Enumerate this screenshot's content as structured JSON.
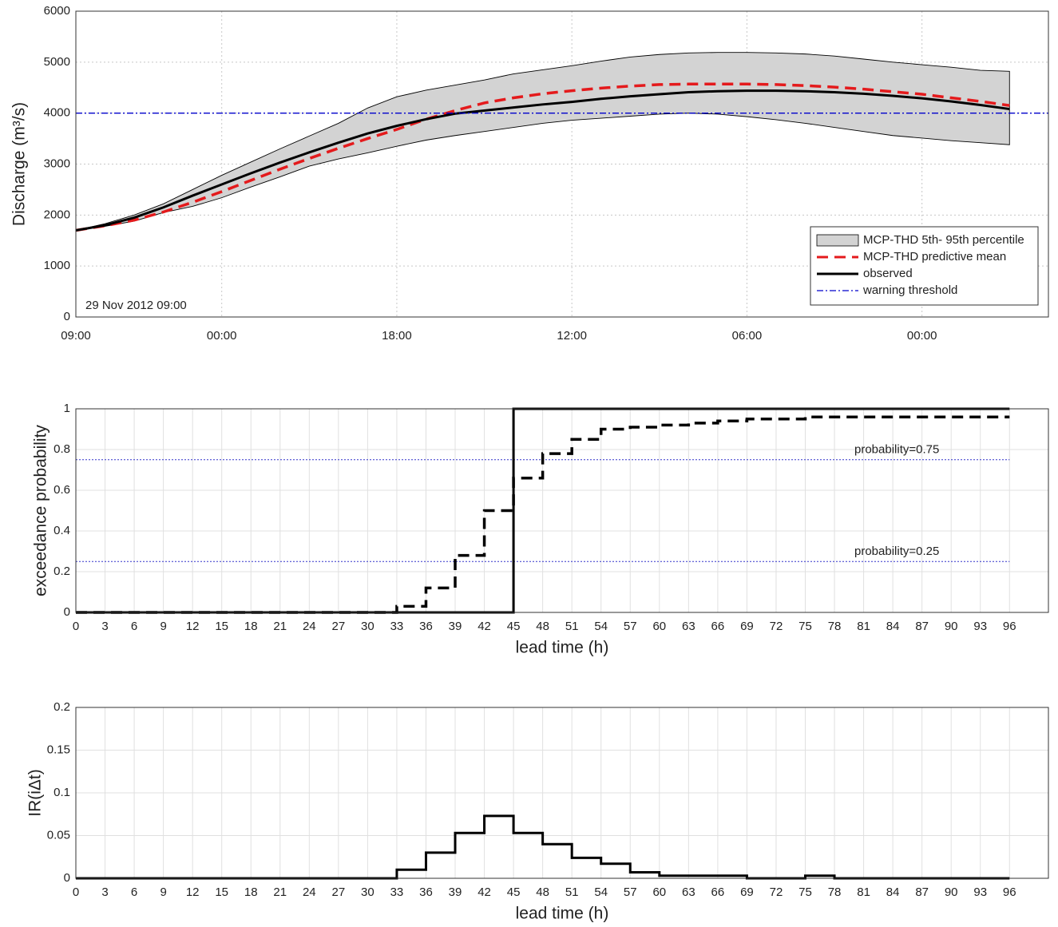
{
  "chart_data": [
    {
      "type": "line",
      "annotation": "29 Nov 2012 09:00",
      "ylabel": "Discharge (m³/s)",
      "xlim": [
        0,
        100
      ],
      "xticks": [
        {
          "value": 0,
          "label": "09:00"
        },
        {
          "value": 15,
          "label": "00:00"
        },
        {
          "value": 33,
          "label": "18:00"
        },
        {
          "value": 51,
          "label": "12:00"
        },
        {
          "value": 69,
          "label": "06:00"
        },
        {
          "value": 87,
          "label": "00:00"
        }
      ],
      "ylim": [
        0,
        6000
      ],
      "yticks": [
        0,
        1000,
        2000,
        3000,
        4000,
        5000,
        6000
      ],
      "grid": "dotted",
      "legend": "lower right",
      "x": [
        0,
        3,
        6,
        9,
        12,
        15,
        18,
        21,
        24,
        27,
        30,
        33,
        36,
        39,
        42,
        45,
        48,
        51,
        54,
        57,
        60,
        63,
        66,
        69,
        72,
        75,
        78,
        81,
        84,
        87,
        90,
        93,
        96
      ],
      "series": [
        {
          "name": "MCP-THD 5th- 95th percentile",
          "color": "#d3d3d3",
          "style": "band",
          "upper": [
            1700,
            1830,
            2000,
            2220,
            2500,
            2780,
            3040,
            3300,
            3550,
            3800,
            4100,
            4320,
            4450,
            4550,
            4650,
            4770,
            4850,
            4930,
            5020,
            5100,
            5150,
            5180,
            5190,
            5190,
            5180,
            5160,
            5120,
            5060,
            5000,
            4950,
            4900,
            4840,
            4820
          ],
          "lower": [
            1700,
            1780,
            1880,
            2050,
            2170,
            2340,
            2550,
            2750,
            2960,
            3100,
            3220,
            3350,
            3470,
            3560,
            3640,
            3720,
            3800,
            3860,
            3900,
            3940,
            3980,
            4000,
            3980,
            3930,
            3870,
            3800,
            3720,
            3640,
            3560,
            3510,
            3460,
            3420,
            3380
          ]
        },
        {
          "name": "MCP-THD predictive mean",
          "color": "#e41a1c",
          "style": "dashed",
          "values": [
            1700,
            1790,
            1900,
            2060,
            2250,
            2460,
            2680,
            2900,
            3110,
            3310,
            3500,
            3680,
            3880,
            4050,
            4200,
            4300,
            4380,
            4440,
            4490,
            4530,
            4560,
            4570,
            4570,
            4570,
            4560,
            4540,
            4510,
            4470,
            4420,
            4370,
            4300,
            4230,
            4150
          ]
        },
        {
          "name": "observed",
          "color": "#000000",
          "style": "solid",
          "values": [
            1700,
            1800,
            1950,
            2150,
            2380,
            2600,
            2820,
            3030,
            3230,
            3420,
            3600,
            3750,
            3880,
            3990,
            4050,
            4110,
            4170,
            4220,
            4280,
            4330,
            4370,
            4410,
            4430,
            4440,
            4440,
            4430,
            4410,
            4380,
            4340,
            4290,
            4230,
            4160,
            4080
          ]
        },
        {
          "name": "warning threshold",
          "color": "#0000cc",
          "style": "dashdot",
          "value": 4000
        }
      ]
    },
    {
      "type": "step",
      "xlabel": "lead time (h)",
      "ylabel": "exceedance probability",
      "xlim": [
        0,
        100
      ],
      "xticks": [
        0,
        3,
        6,
        9,
        12,
        15,
        18,
        21,
        24,
        27,
        30,
        33,
        36,
        39,
        42,
        45,
        48,
        51,
        54,
        57,
        60,
        63,
        66,
        69,
        72,
        75,
        78,
        81,
        84,
        87,
        90,
        93,
        96
      ],
      "ylim": [
        0,
        1
      ],
      "yticks": [
        0,
        0.2,
        0.4,
        0.6,
        0.8,
        1
      ],
      "grid": "solid",
      "x": [
        0,
        3,
        6,
        9,
        12,
        15,
        18,
        21,
        24,
        27,
        30,
        33,
        36,
        39,
        42,
        45,
        48,
        51,
        54,
        57,
        60,
        63,
        66,
        69,
        72,
        75,
        78,
        81,
        84,
        87,
        90,
        93,
        96
      ],
      "series": [
        {
          "color": "#000000",
          "style": "dashed",
          "values": [
            0,
            0,
            0,
            0,
            0,
            0,
            0,
            0,
            0,
            0,
            0,
            0.03,
            0.12,
            0.28,
            0.5,
            0.66,
            0.78,
            0.85,
            0.9,
            0.91,
            0.92,
            0.93,
            0.94,
            0.95,
            0.95,
            0.96,
            0.96,
            0.96,
            0.96,
            0.96,
            0.96,
            0.96,
            0.96
          ]
        },
        {
          "color": "#000000",
          "style": "solid",
          "values": [
            0,
            0,
            0,
            0,
            0,
            0,
            0,
            0,
            0,
            0,
            0,
            0,
            0,
            0,
            0,
            1,
            1,
            1,
            1,
            1,
            1,
            1,
            1,
            1,
            1,
            1,
            1,
            1,
            1,
            1,
            1,
            1,
            1
          ]
        }
      ],
      "hlines": [
        {
          "value": 0.75,
          "label": "probability=0.75",
          "color": "#3333cc"
        },
        {
          "value": 0.25,
          "label": "probability=0.25",
          "color": "#3333cc"
        }
      ]
    },
    {
      "type": "step",
      "xlabel": "lead time (h)",
      "ylabel": "IR(iΔt)",
      "xlim": [
        0,
        100
      ],
      "xticks": [
        0,
        3,
        6,
        9,
        12,
        15,
        18,
        21,
        24,
        27,
        30,
        33,
        36,
        39,
        42,
        45,
        48,
        51,
        54,
        57,
        60,
        63,
        66,
        69,
        72,
        75,
        78,
        81,
        84,
        87,
        90,
        93,
        96
      ],
      "ylim": [
        0,
        0.2
      ],
      "yticks": [
        0,
        0.05,
        0.1,
        0.15,
        0.2
      ],
      "grid": "solid",
      "x": [
        0,
        3,
        6,
        9,
        12,
        15,
        18,
        21,
        24,
        27,
        30,
        33,
        36,
        39,
        42,
        45,
        48,
        51,
        54,
        57,
        60,
        63,
        66,
        69,
        72,
        75,
        78,
        81,
        84,
        87,
        90,
        93,
        96
      ],
      "series": [
        {
          "color": "#000000",
          "style": "solid",
          "values": [
            0,
            0,
            0,
            0,
            0,
            0,
            0,
            0,
            0,
            0,
            0,
            0.01,
            0.03,
            0.053,
            0.073,
            0.053,
            0.04,
            0.024,
            0.017,
            0.007,
            0.003,
            0.003,
            0.003,
            0,
            0,
            0.003,
            0,
            0,
            0,
            0,
            0,
            0,
            0
          ]
        }
      ]
    }
  ]
}
